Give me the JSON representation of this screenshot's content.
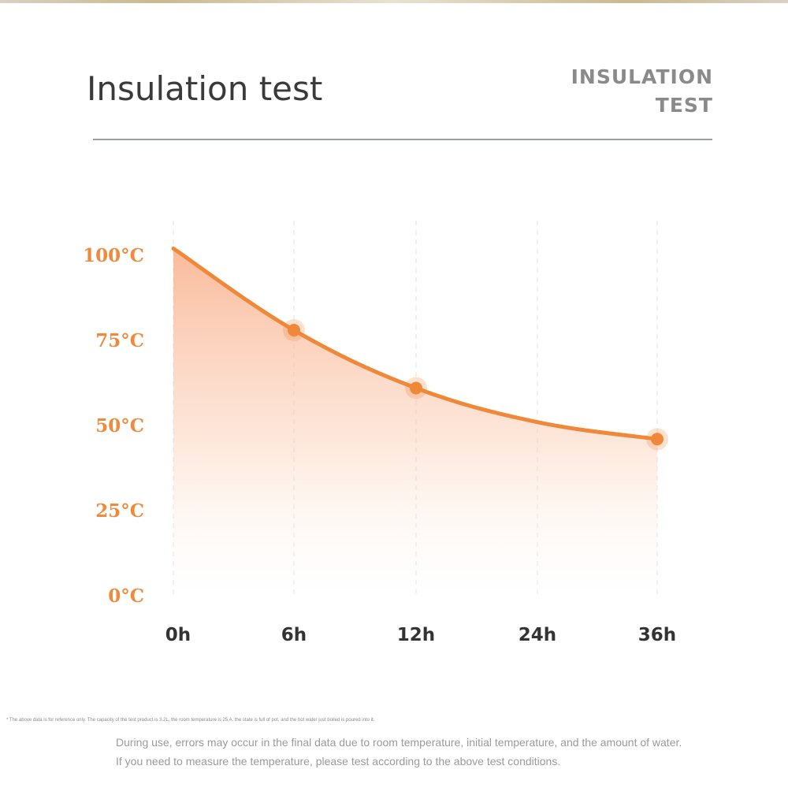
{
  "header": {
    "title": "Insulation test",
    "en_title_line1": "INSULATION",
    "en_title_line2": "TEST"
  },
  "chart_data": {
    "type": "area",
    "categories": [
      "0h",
      "6h",
      "12h",
      "24h",
      "36h"
    ],
    "y_ticks": [
      "100°C",
      "75°C",
      "50°C",
      "25°C",
      "0°C"
    ],
    "y_tick_values": [
      100,
      75,
      50,
      25,
      0
    ],
    "ylim": [
      0,
      100
    ],
    "curve": [
      {
        "x": "0h",
        "y": 102
      },
      {
        "x": "6h",
        "y": 78
      },
      {
        "x": "12h",
        "y": 61
      },
      {
        "x": "24h",
        "y": 51
      },
      {
        "x": "36h",
        "y": 46
      }
    ],
    "markers": [
      {
        "x": "6h",
        "y": 78
      },
      {
        "x": "12h",
        "y": 61
      },
      {
        "x": "36h",
        "y": 46
      }
    ],
    "colors": {
      "line": "#f0883a",
      "tick_label": "#ef8a3c",
      "x_label": "#333333",
      "fill_top": "#f7a47a",
      "grid": "#ececec"
    }
  },
  "footer": {
    "small_note": "* The above data is for reference only. The capacity of the test product is 3.2L, the room temperature is 25 A. the state is full of pot, and the hot water just boiled is poured into it.",
    "note1": "During use, errors may occur in the final data due to room temperature, initial temperature, and the amount of water.",
    "note2": "If you need to measure the temperature, please test according to the above test conditions."
  }
}
